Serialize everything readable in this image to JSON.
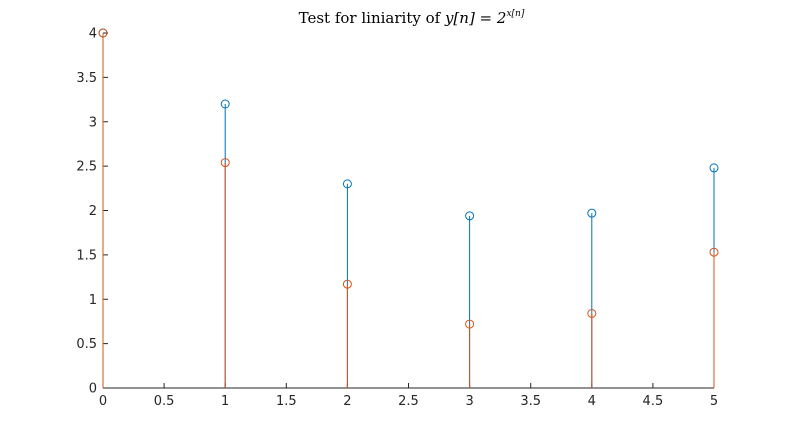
{
  "chart_data": {
    "type": "stem",
    "title_prefix": "Test for liniarity of ",
    "title_math_lhs": "y[n] = 2",
    "title_math_exp": "x[n]",
    "xlim": [
      0,
      5
    ],
    "ylim": [
      0,
      4
    ],
    "x_ticks": [
      "0",
      "0.5",
      "1",
      "1.5",
      "2",
      "2.5",
      "3",
      "3.5",
      "4",
      "4.5",
      "5"
    ],
    "y_ticks": [
      "0",
      "0.5",
      "1",
      "1.5",
      "2",
      "2.5",
      "3",
      "3.5",
      "4"
    ],
    "grid": false,
    "series": [
      {
        "color": "#0072BD",
        "x": [
          0,
          1,
          2,
          3,
          4,
          5
        ],
        "y": [
          4.0,
          3.2,
          2.3,
          1.94,
          1.97,
          2.48
        ]
      },
      {
        "color": "#D95319",
        "x": [
          0,
          1,
          2,
          3,
          4,
          5
        ],
        "y": [
          4.0,
          2.54,
          1.17,
          0.72,
          0.84,
          1.53
        ]
      }
    ]
  }
}
